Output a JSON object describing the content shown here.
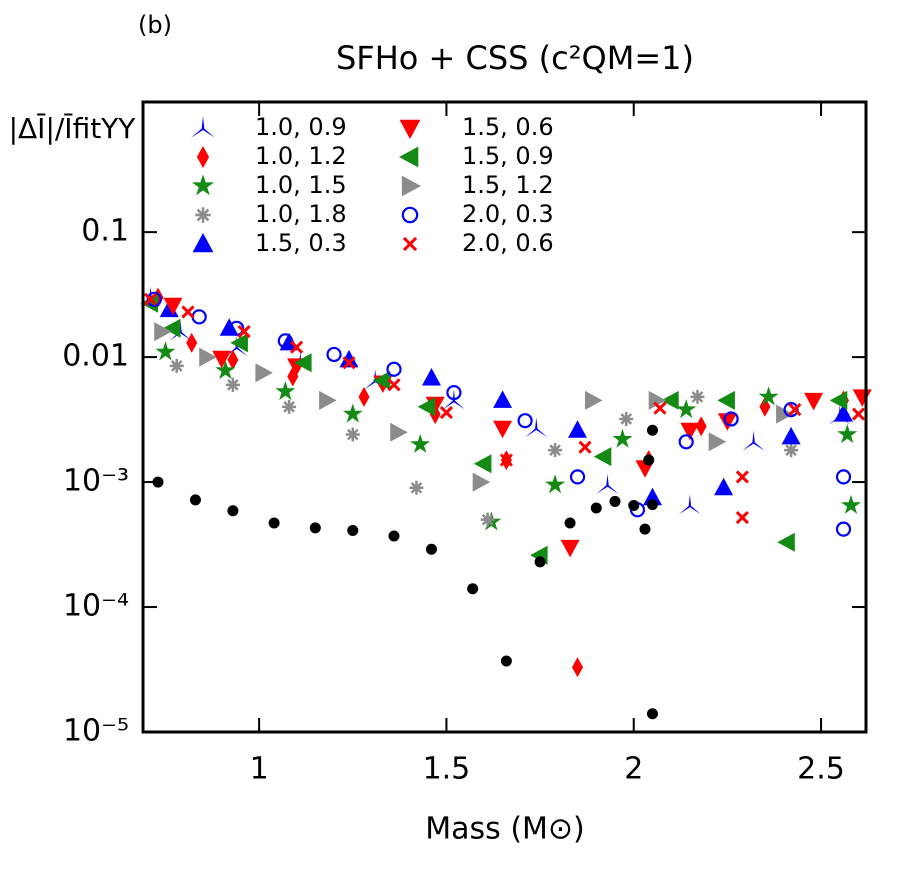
{
  "chart_data": {
    "type": "scatter",
    "panel_label": "(b)",
    "title": "SFHo + CSS (c²QM=1)",
    "y_label": "|ΔĪ|/ĪfitYY",
    "x_label": "Mass (M⊙)",
    "xlim": [
      0.69,
      2.62
    ],
    "xticks": [
      1,
      1.5,
      2,
      2.5
    ],
    "ylim": [
      1e-05,
      1.1
    ],
    "log_y": true,
    "yticks": [
      {
        "value": 0.1,
        "label": "0.1"
      },
      {
        "value": 0.01,
        "label": "0.01"
      },
      {
        "value": 0.001,
        "label": "10⁻³"
      },
      {
        "value": 0.0001,
        "label": "10⁻⁴"
      },
      {
        "value": 1e-05,
        "label": "10⁻⁵"
      }
    ],
    "legend": "upper left",
    "series": [
      {
        "name": "1.0, 0.9",
        "color": "#0000ff",
        "marker": "tri-blade",
        "x": [
          0.71,
          0.79,
          0.94,
          1.11,
          1.31,
          1.52,
          1.74,
          1.93,
          2.15,
          2.32,
          2.55
        ],
        "values": [
          0.03,
          0.016,
          0.012,
          0.009,
          0.0065,
          0.0045,
          0.0027,
          0.00095,
          0.00065,
          0.0021,
          0.0034
        ]
      },
      {
        "name": "1.0, 1.2",
        "color": "#ff0000",
        "marker": "diamond",
        "x": [
          0.73,
          0.82,
          0.93,
          1.09,
          1.28,
          1.47,
          1.66,
          1.85,
          2.04,
          2.18,
          2.35,
          2.56
        ],
        "values": [
          0.03,
          0.013,
          0.0095,
          0.007,
          0.0048,
          0.0035,
          0.0015,
          3.3e-05,
          0.0015,
          0.0028,
          0.004,
          0.0045
        ]
      },
      {
        "name": "1.0, 1.5",
        "color": "#138a13",
        "marker": "star",
        "x": [
          0.75,
          0.91,
          1.07,
          1.25,
          1.43,
          1.62,
          1.79,
          1.97,
          2.14,
          2.36,
          2.57,
          2.58
        ],
        "values": [
          0.011,
          0.0078,
          0.0053,
          0.0035,
          0.002,
          0.00048,
          0.00095,
          0.0022,
          0.0038,
          0.0048,
          0.0024,
          0.00065
        ]
      },
      {
        "name": "1.0, 1.8",
        "color": "#8c8c8c",
        "marker": "asterisk",
        "x": [
          0.78,
          0.93,
          1.08,
          1.25,
          1.42,
          1.61,
          1.79,
          1.98,
          2.17,
          2.42
        ],
        "values": [
          0.0085,
          0.006,
          0.004,
          0.0024,
          0.0009,
          0.0005,
          0.0018,
          0.0032,
          0.0048,
          0.0018
        ]
      },
      {
        "name": "1.5, 0.3",
        "color": "#0000ff",
        "marker": "triangle-up",
        "x": [
          0.76,
          0.92,
          1.08,
          1.24,
          1.46,
          1.65,
          1.85,
          2.05,
          2.24,
          2.42,
          2.56
        ],
        "values": [
          0.024,
          0.017,
          0.013,
          0.0095,
          0.0068,
          0.0045,
          0.0026,
          0.00075,
          0.0009,
          0.0023,
          0.0035
        ]
      },
      {
        "name": "1.5, 0.6",
        "color": "#ff0000",
        "marker": "triangle-down",
        "x": [
          0.77,
          0.9,
          1.1,
          1.33,
          1.47,
          1.65,
          1.83,
          2.03,
          2.15,
          2.25,
          2.48,
          2.61
        ],
        "values": [
          0.026,
          0.0098,
          0.0085,
          0.0062,
          0.0042,
          0.0027,
          0.0003,
          0.0013,
          0.0026,
          0.0031,
          0.0045,
          0.0048
        ]
      },
      {
        "name": "1.5, 0.9",
        "color": "#138a13",
        "marker": "triangle-left",
        "x": [
          0.71,
          0.77,
          0.95,
          1.12,
          1.33,
          1.45,
          1.6,
          1.75,
          1.92,
          2.1,
          2.25,
          2.41,
          2.55
        ],
        "values": [
          0.027,
          0.017,
          0.013,
          0.009,
          0.0065,
          0.004,
          0.0014,
          0.00026,
          0.0016,
          0.0045,
          0.0045,
          0.00033,
          0.0045
        ]
      },
      {
        "name": "1.5, 1.2",
        "color": "#8c8c8c",
        "marker": "triangle-right",
        "x": [
          0.74,
          0.86,
          1.01,
          1.18,
          1.37,
          1.59,
          1.89,
          2.06,
          2.22,
          2.4
        ],
        "values": [
          0.016,
          0.01,
          0.0075,
          0.0045,
          0.0025,
          0.001,
          0.0045,
          0.0045,
          0.0021,
          0.0035
        ]
      },
      {
        "name": "2.0, 0.3",
        "color": "#0000ff",
        "marker": "circle-open",
        "x": [
          0.72,
          0.84,
          0.94,
          1.07,
          1.2,
          1.36,
          1.52,
          1.71,
          1.85,
          2.01,
          2.14,
          2.26,
          2.42,
          2.56,
          2.56
        ],
        "values": [
          0.029,
          0.021,
          0.017,
          0.0135,
          0.0105,
          0.008,
          0.0052,
          0.0031,
          0.0011,
          0.0006,
          0.0021,
          0.0032,
          0.0038,
          0.00042,
          0.0011
        ]
      },
      {
        "name": "2.0, 0.6",
        "color": "#ff0000",
        "marker": "x",
        "x": [
          0.71,
          0.81,
          0.96,
          1.1,
          1.24,
          1.36,
          1.5,
          1.66,
          1.87,
          2.07,
          2.29,
          2.29,
          2.43,
          2.6
        ],
        "values": [
          0.029,
          0.023,
          0.016,
          0.012,
          0.009,
          0.006,
          0.0036,
          0.0015,
          0.0019,
          0.0039,
          0.00052,
          0.0011,
          0.0038,
          0.0035
        ]
      },
      {
        "color": "#000000",
        "marker": "dot",
        "x": [
          0.73,
          0.83,
          0.93,
          1.04,
          1.15,
          1.25,
          1.36,
          1.46,
          1.57,
          1.66,
          1.75,
          1.83,
          1.9,
          1.95,
          2.0,
          2.03,
          2.04,
          2.05,
          2.05,
          2.05
        ],
        "values": [
          0.001,
          0.00072,
          0.00059,
          0.00047,
          0.00043,
          0.00041,
          0.00037,
          0.00029,
          0.00014,
          3.7e-05,
          0.00023,
          0.00047,
          0.00062,
          0.0007,
          0.00065,
          0.00042,
          0.0015,
          0.0026,
          0.00066,
          1.4e-05
        ]
      }
    ]
  }
}
